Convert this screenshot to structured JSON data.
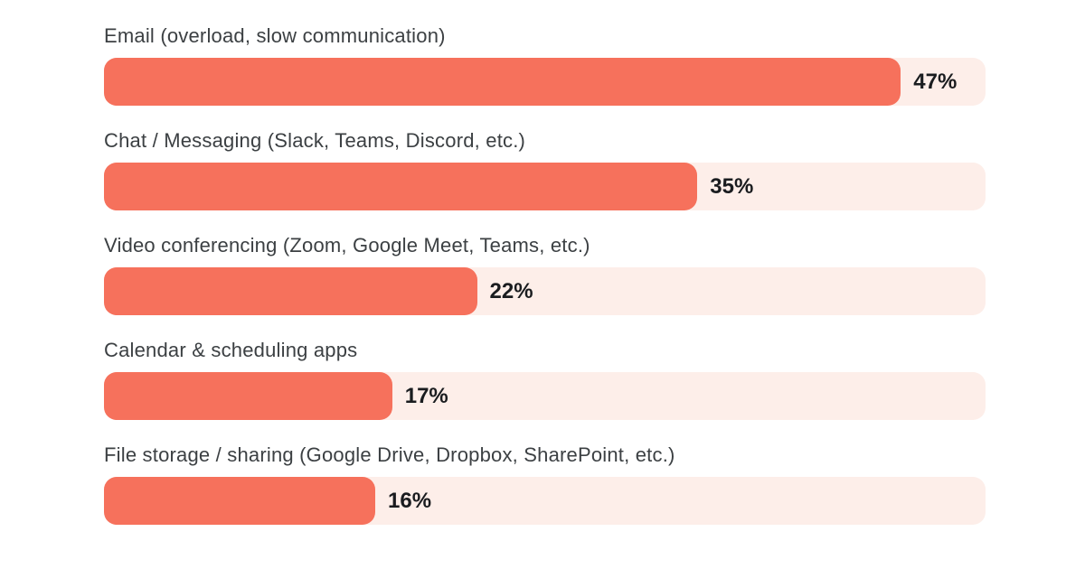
{
  "page": {
    "background": "#ffffff"
  },
  "chart_data": {
    "type": "bar",
    "orientation": "horizontal",
    "title": "",
    "xlabel": "",
    "ylabel": "",
    "categories": [
      "Email (overload, slow communication)",
      "Chat / Messaging (Slack, Teams, Discord, etc.)",
      "Video conferencing (Zoom, Google Meet, Teams, etc.)",
      "Calendar & scheduling apps",
      "File storage / sharing (Google Drive, Dropbox, SharePoint, etc.)"
    ],
    "values": [
      47,
      35,
      22,
      17,
      16
    ],
    "value_labels": [
      "47%",
      "35%",
      "22%",
      "17%",
      "16%"
    ],
    "xlim": [
      0,
      52
    ],
    "grid": false,
    "legend": false,
    "colors": {
      "bar": "#f6715c",
      "track": "#fdeee9",
      "label_text": "#3c4043",
      "value_text": "#1a1c1f"
    }
  }
}
